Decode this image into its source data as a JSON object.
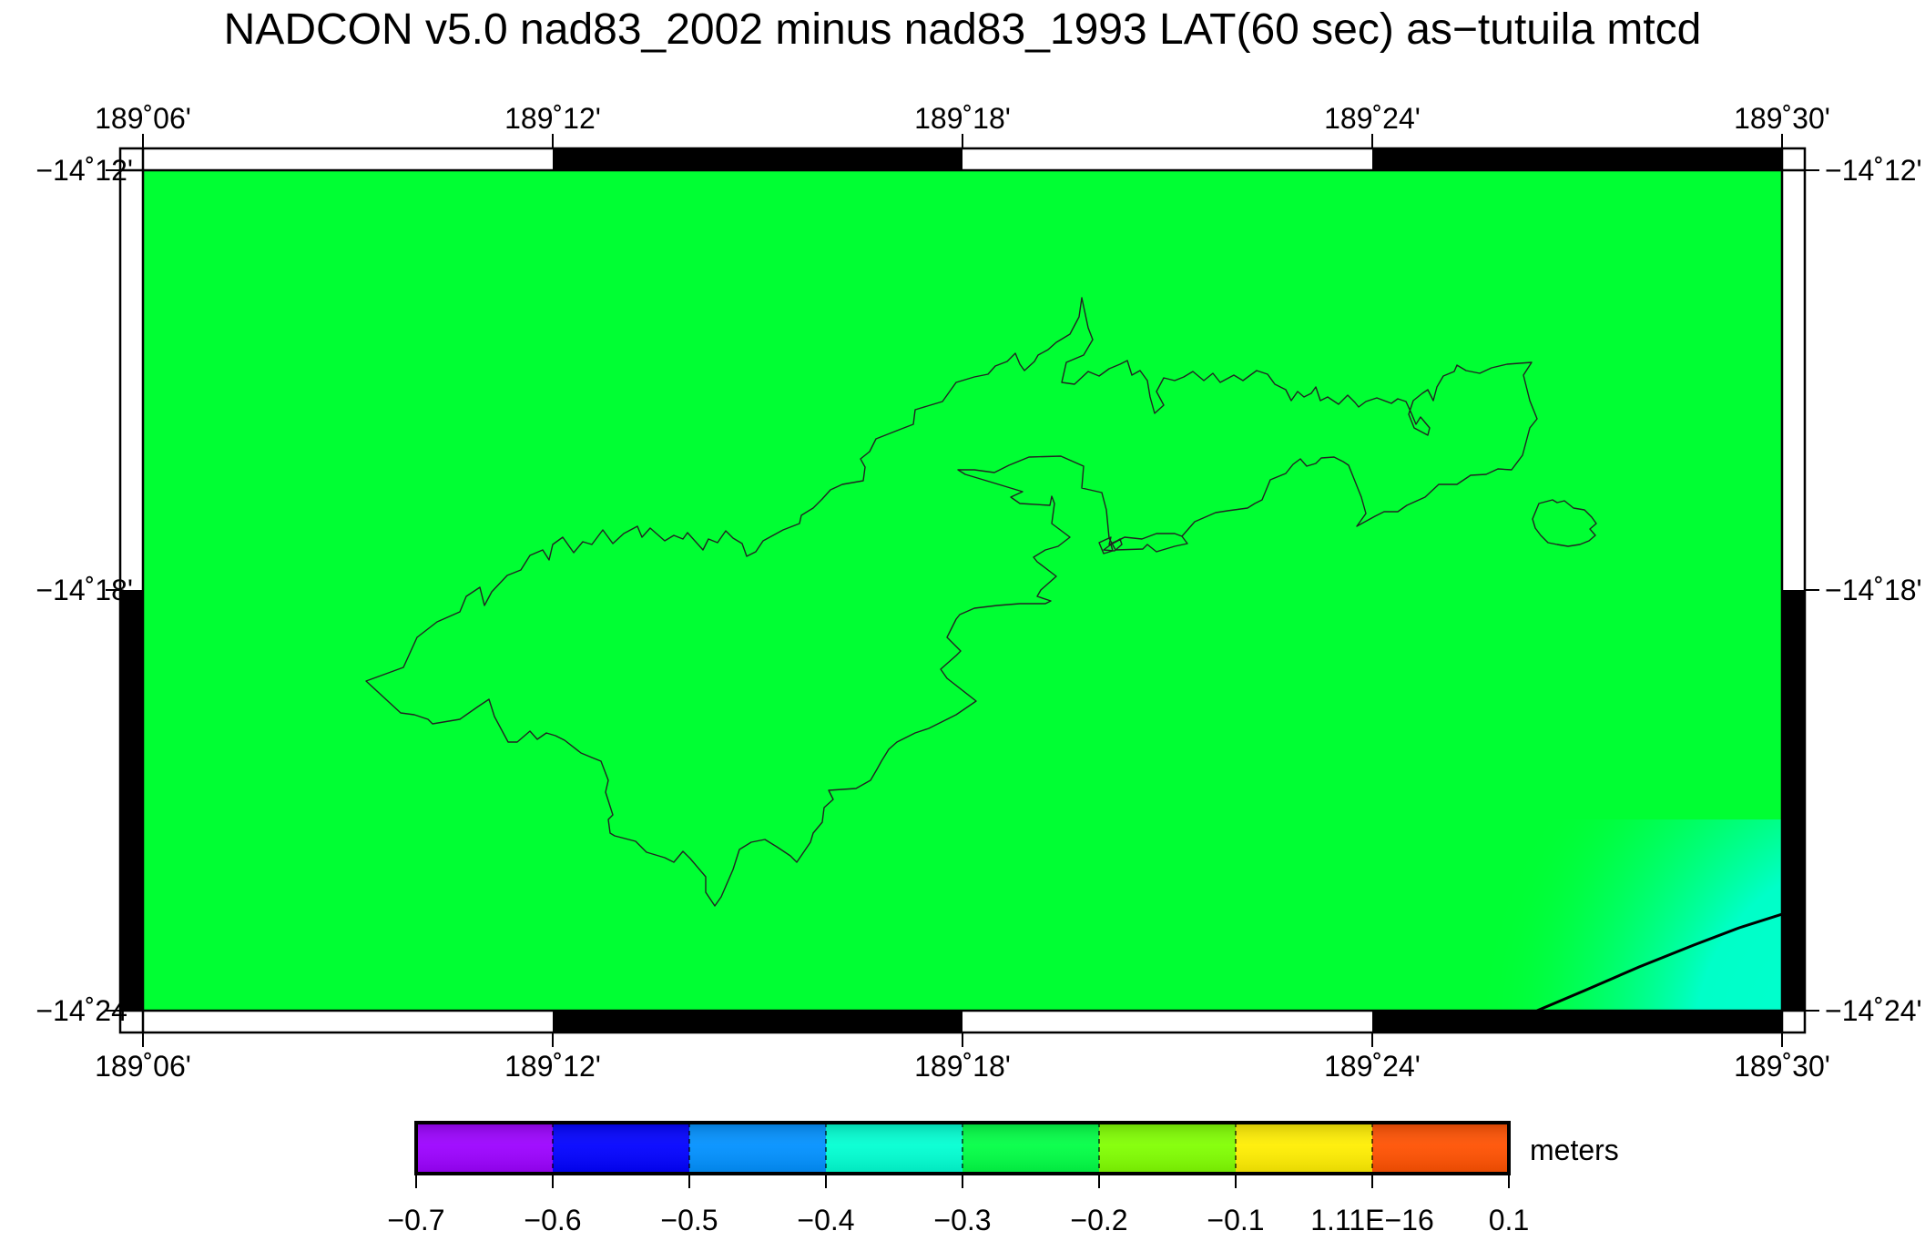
{
  "title": "NADCON v5.0 nad83_2002 minus nad83_1993 LAT(60 sec) as−tutuila mtcd",
  "map": {
    "lon_range": [
      189.1,
      189.5
    ],
    "lat_range": [
      -14.4,
      -14.2
    ],
    "lon_ticks": [
      "189˚06'",
      "189˚12'",
      "189˚18'",
      "189˚24'",
      "189˚30'"
    ],
    "lat_ticks": [
      "−14˚12'",
      "−14˚18'",
      "−14˚24'"
    ],
    "background_value_color": "#00ff33",
    "corner_anomaly_color": "#00ffcc",
    "coastline_color": "#222222"
  },
  "colorbar": {
    "unit_label": "meters",
    "tick_labels": [
      "−0.7",
      "−0.6",
      "−0.5",
      "−0.4",
      "−0.3",
      "−0.2",
      "−0.1",
      "1.11E−16",
      "0.1"
    ],
    "colors": [
      "#9b00ff",
      "#0000ff",
      "#0090ff",
      "#00ffd2",
      "#00ff44",
      "#80ff00",
      "#ffee00",
      "#ff5000"
    ]
  }
}
